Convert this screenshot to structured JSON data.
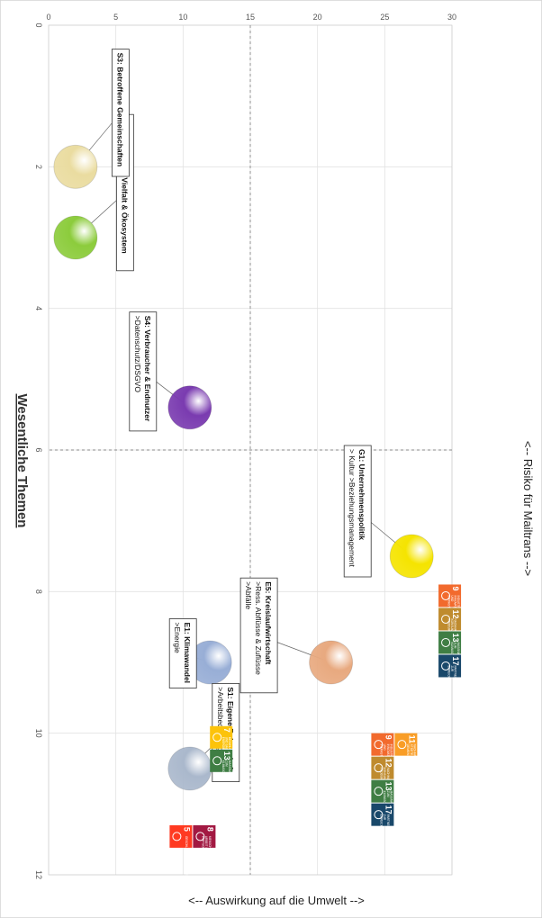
{
  "chart_data": {
    "type": "scatter",
    "title": "Wesentliche Themen",
    "xlabel": "<-- Risiko für Mailtrans -->",
    "ylabel": "<-- Auswirkung auf die Umwelt -->",
    "xlim": [
      0,
      12
    ],
    "ylim": [
      0,
      30
    ],
    "x_ticks": [
      "0",
      "2",
      "4",
      "6",
      "8",
      "10",
      "12"
    ],
    "y_ticks": [
      "0",
      "5",
      "10",
      "15",
      "20",
      "25",
      "30"
    ],
    "grid": true,
    "divider": {
      "x": 6,
      "y": 15
    },
    "orientation": "rotated 90° clockwise",
    "points": [
      {
        "x": 7.5,
        "y": 27,
        "color": "#f5e400",
        "lines": [
          "G1: Unternehmenspolitik",
          "> Kultur >Beziehungsmanagement"
        ]
      },
      {
        "x": 9,
        "y": 21,
        "color": "#e8a97f",
        "lines": [
          "E5: Kreislaufwirtschaft",
          ">Ress. Abflüsse & Zuflüsse",
          ">Abfälle"
        ]
      },
      {
        "x": 9,
        "y": 12,
        "color": "#98aed6",
        "lines": [
          "E1: Klimawandel",
          ">Energie"
        ]
      },
      {
        "x": 10.5,
        "y": 10.5,
        "color": "#aab8cc",
        "lines": [
          "S1: Eigene Belegschaft",
          ">Arbeitsbedingungen"
        ]
      },
      {
        "x": 5.4,
        "y": 10.5,
        "color": "#7a3bb0",
        "lines": [
          "S4: Verbraucher & Endnutzer",
          ">Datenschutz/DSGVO"
        ]
      },
      {
        "x": 3,
        "y": 2,
        "color": "#8ccc3c",
        "lines": [
          "E4: Biologische Vielfalt & Ökosystem"
        ]
      },
      {
        "x": 2,
        "y": 2,
        "color": "#eadca0",
        "lines": [
          "S3: Betroffene Gemeinschaften"
        ]
      }
    ],
    "sdg_badges": [
      {
        "group": "G1",
        "num": "9",
        "color": "#f26a2d",
        "text": "INDUSTRIE, INNOVATION UND INFRASTRUKTUR"
      },
      {
        "group": "G1",
        "num": "12",
        "color": "#bf8b2e",
        "text": "NACHHALTIGE/R KONSUM UND PRODUKTION"
      },
      {
        "group": "G1",
        "num": "13",
        "color": "#3f7e44",
        "text": "MASSNAHMEN ZUM KLIMASCHUTZ"
      },
      {
        "group": "G1",
        "num": "17",
        "color": "#19486a",
        "text": "PARTNERSCHAFTEN ZUR ERREICHUNG DER ZIELE"
      },
      {
        "group": "E5",
        "num": "9",
        "color": "#f26a2d",
        "text": "INDUSTRIE, INNOVATION UND INFRASTRUKTUR"
      },
      {
        "group": "E5",
        "num": "12",
        "color": "#bf8b2e",
        "text": "NACHHALTIGE/R KONSUM UND PRODUKTION"
      },
      {
        "group": "E5",
        "num": "13",
        "color": "#3f7e44",
        "text": "MASSNAHMEN ZUM KLIMASCHUTZ"
      },
      {
        "group": "E5",
        "num": "17",
        "color": "#19486a",
        "text": "PARTNERSCHAFTEN ZUR ERREICHUNG DER ZIELE"
      },
      {
        "group": "E5",
        "num": "11",
        "color": "#f99d26",
        "text": "NACHHALTIGE STÄDTE UND GEMEINDEN"
      },
      {
        "group": "E1",
        "num": "7",
        "color": "#fcc30b",
        "text": "BEZAHLBARE UND SAUBERE ENERGIE"
      },
      {
        "group": "E1",
        "num": "13",
        "color": "#3f7e44",
        "text": "MASSNAHMEN ZUM KLIMASCHUTZ"
      },
      {
        "group": "S1",
        "num": "5",
        "color": "#ff3a21",
        "text": "GESCHLECHTER-GLEICHHEIT"
      },
      {
        "group": "S1",
        "num": "8",
        "color": "#a21942",
        "text": "MENSCHENWÜRDIGE ARBEIT UND WIRTSCHAFTS-WACHSTUM"
      }
    ]
  }
}
